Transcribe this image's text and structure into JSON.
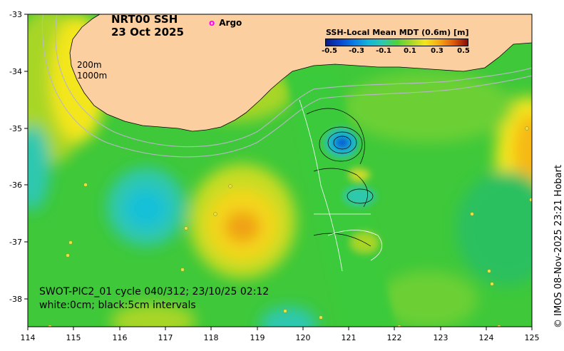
{
  "title": {
    "line1": "NRT00 SSH",
    "line2": "23 Oct 2025"
  },
  "legend_marker": {
    "symbol": "o",
    "label": "Argo",
    "color": "#ff00ff"
  },
  "depth_labels": [
    "200m",
    "1000m"
  ],
  "colorbar": {
    "title": "SSH-Local Mean MDT (0.6m) [m]",
    "ticks": [
      "-0.5",
      "-0.3",
      "-0.1",
      "0.1",
      "0.3",
      "0.5"
    ],
    "colors": [
      "#0a1b8a",
      "#12b5d8",
      "#4fd23c",
      "#f4e61e",
      "#e05a0a",
      "#8a0a0a"
    ]
  },
  "swot_caption": {
    "line1": "SWOT-PIC2_01 cycle 040/312; 23/10/25 02:12",
    "line2": "white:0cm; black:5cm intervals"
  },
  "copyright": "© IMOS 08-Nov-2025 23:21 Hobart",
  "axes": {
    "x_ticks": [
      "114",
      "115",
      "116",
      "117",
      "118",
      "119",
      "120",
      "121",
      "122",
      "123",
      "124",
      "125"
    ],
    "y_ticks": [
      "-33",
      "-34",
      "-35",
      "-36",
      "-37",
      "-38"
    ]
  },
  "colors": {
    "land": "#fbcf9f",
    "ocean_base": "#3ec83a"
  }
}
